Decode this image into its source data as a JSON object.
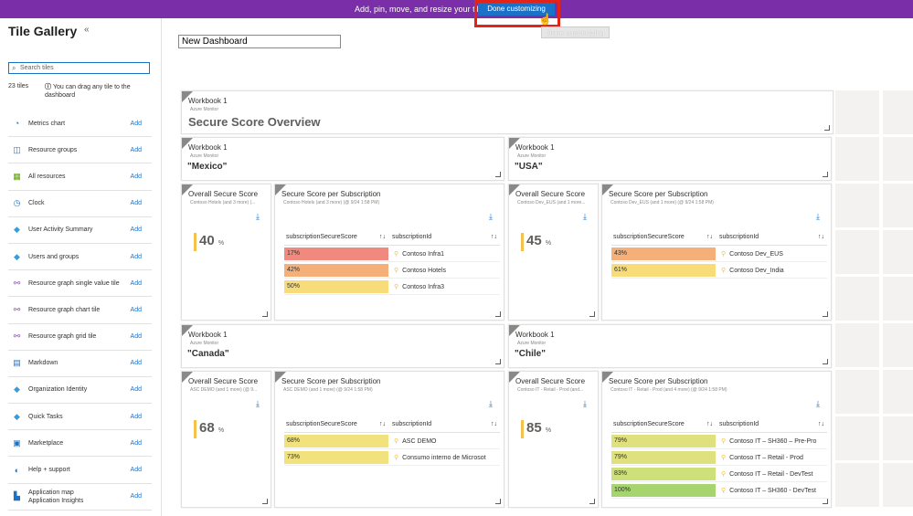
{
  "topbar": {
    "message": "Add, pin, move, and resize your tiles.",
    "done_label": "Done customizing",
    "tooltip": "Done customizing"
  },
  "sidebar": {
    "title": "Tile Gallery",
    "collapse": "«",
    "search_placeholder": "Search tiles",
    "count": "23 tiles",
    "hint": "You can drag any tile to the dashboard",
    "items": [
      {
        "label": "Metrics chart",
        "add": "Add",
        "icon": "metrics-chart-icon",
        "color": "#1a72c8"
      },
      {
        "label": "Resource groups",
        "add": "Add",
        "icon": "resource-groups-icon",
        "color": "#1a72c8"
      },
      {
        "label": "All resources",
        "add": "Add",
        "icon": "all-resources-icon",
        "color": "#57a300"
      },
      {
        "label": "Clock",
        "add": "Add",
        "icon": "clock-icon",
        "color": "#1a72c8"
      },
      {
        "label": "User Activity Summary",
        "add": "Add",
        "icon": "user-activity-icon",
        "color": "#3c9ad8"
      },
      {
        "label": "Users and groups",
        "add": "Add",
        "icon": "users-groups-icon",
        "color": "#3c9ad8"
      },
      {
        "label": "Resource graph single value tile",
        "add": "Add",
        "icon": "resource-graph-icon",
        "color": "#8c4fc1"
      },
      {
        "label": "Resource graph chart tile",
        "add": "Add",
        "icon": "resource-graph-icon",
        "color": "#8c4fc1"
      },
      {
        "label": "Resource graph grid tile",
        "add": "Add",
        "icon": "resource-graph-icon",
        "color": "#8c4fc1"
      },
      {
        "label": "Markdown",
        "add": "Add",
        "icon": "markdown-icon",
        "color": "#1a72c8"
      },
      {
        "label": "Organization Identity",
        "add": "Add",
        "icon": "organization-icon",
        "color": "#3c9ad8"
      },
      {
        "label": "Quick Tasks",
        "add": "Add",
        "icon": "quick-tasks-icon",
        "color": "#3c9ad8"
      },
      {
        "label": "Marketplace",
        "add": "Add",
        "icon": "marketplace-icon",
        "color": "#1a72c8"
      },
      {
        "label": "Help + support",
        "add": "Add",
        "icon": "help-support-icon",
        "color": "#1a72c8"
      },
      {
        "label": "Application map\nApplication Insights",
        "add": "Add",
        "icon": "application-map-icon",
        "color": "#1a72c8"
      }
    ]
  },
  "dashboard": {
    "name": "New Dashboard"
  },
  "workbook": {
    "title": "Workbook 1",
    "subtitle": "Azure Monitor"
  },
  "overview": {
    "title": "Secure Score Overview"
  },
  "regions": {
    "mexico": "\"Mexico\"",
    "usa": "\"USA\"",
    "canada": "\"Canada\"",
    "chile": "\"Chile\""
  },
  "labels": {
    "overall": "Overall Secure Score",
    "per_sub": "Secure Score per Subscription",
    "col1": "subscriptionSecureScore",
    "col2": "subscriptionId",
    "pct": "%"
  },
  "groups": [
    {
      "overall_sub": "Contoso Hotels (and 3 more) (...",
      "per_sub_sub": "Contoso Hotels (and 3 more) (@ 9/24 1:58 PM)",
      "score": "40",
      "rows": [
        {
          "v": "17%",
          "id": "Contoso Infra1",
          "color": "#f08a7e",
          "w": 100
        },
        {
          "v": "42%",
          "id": "Contoso Hotels",
          "color": "#f5b07a",
          "w": 100
        },
        {
          "v": "50%",
          "id": "Contoso Infra3",
          "color": "#f8dc7a",
          "w": 100
        }
      ]
    },
    {
      "overall_sub": "Contoso Dev_EUS (and 1 more...",
      "per_sub_sub": "Contoso Dev_EUS (and 1 more) (@ 9/24 1:58 PM)",
      "score": "45",
      "rows": [
        {
          "v": "43%",
          "id": "Contoso Dev_EUS",
          "color": "#f5b07a",
          "w": 100
        },
        {
          "v": "61%",
          "id": "Contoso Dev_India",
          "color": "#f8dc7a",
          "w": 100
        }
      ]
    },
    {
      "overall_sub": "ASC DEMO (and 1 more) (@ 9...",
      "per_sub_sub": "ASC DEMO (and 1 more) (@ 9/24 1:58 PM)",
      "score": "68",
      "rows": [
        {
          "v": "68%",
          "id": "ASC DEMO",
          "color": "#f1e27e",
          "w": 100
        },
        {
          "v": "73%",
          "id": "Consumo interno de Microsot",
          "color": "#f1e27e",
          "w": 100
        }
      ]
    },
    {
      "overall_sub": "Contoso IT - Retail - Prod (and...",
      "per_sub_sub": "Contoso IT - Retail - Prod (and 4 more) (@ 9/24 1:58 PM)",
      "score": "85",
      "rows": [
        {
          "v": "79%",
          "id": "Contoso IT – SH360 – Pre-Pro",
          "color": "#dfe17e",
          "w": 100
        },
        {
          "v": "79%",
          "id": "Contoso IT – Retail - Prod",
          "color": "#dfe17e",
          "w": 100
        },
        {
          "v": "83%",
          "id": "Contoso IT – Retail - DevTest",
          "color": "#cde07a",
          "w": 100
        },
        {
          "v": "100%",
          "id": "Contoso IT – SH360 - DevTest",
          "color": "#a6d46e",
          "w": 100
        }
      ]
    }
  ]
}
